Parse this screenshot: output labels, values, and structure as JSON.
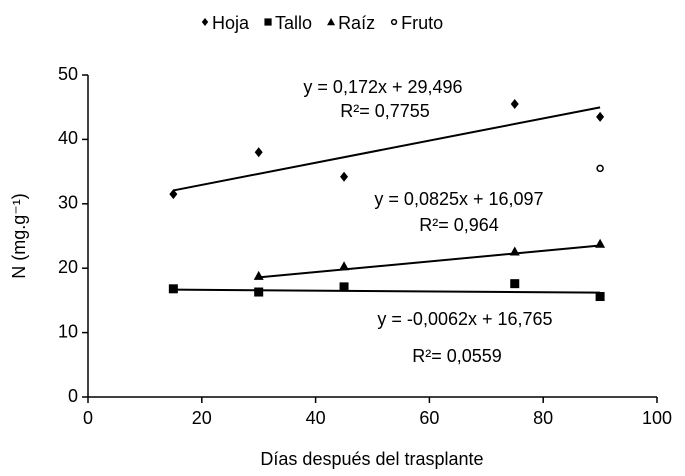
{
  "chart_data": {
    "type": "scatter",
    "x_label": "Días después del trasplante",
    "y_label": "N (mg.g⁻¹)",
    "xlim": [
      0,
      100
    ],
    "xticks": [
      0,
      20,
      40,
      60,
      80,
      100
    ],
    "ylim": [
      0,
      50
    ],
    "yticks": [
      0,
      10,
      20,
      30,
      40,
      50
    ],
    "legend": "top",
    "series": [
      {
        "name": "Hoja",
        "marker": "diamond",
        "color": "#000000",
        "x": [
          15,
          30,
          45,
          75,
          90
        ],
        "values": [
          31.5,
          38.0,
          34.2,
          45.5,
          43.5
        ],
        "trend": {
          "slope": 0.172,
          "intercept": 29.496,
          "equation": "y = 0,172x + 29,496",
          "r2": "R²= 0,7755"
        }
      },
      {
        "name": "Tallo",
        "marker": "square",
        "color": "#000000",
        "x": [
          15,
          30,
          45,
          75,
          90
        ],
        "values": [
          16.8,
          16.3,
          17.1,
          17.6,
          15.6
        ],
        "trend": {
          "slope": -0.0062,
          "intercept": 16.765,
          "equation": "y = -0,0062x + 16,765",
          "r2": "R²= 0,0559"
        }
      },
      {
        "name": "Raíz",
        "marker": "triangle",
        "color": "#000000",
        "x": [
          30,
          45,
          75,
          90
        ],
        "values": [
          18.8,
          20.3,
          22.6,
          23.8
        ],
        "trend": {
          "slope": 0.0825,
          "intercept": 16.097,
          "equation": "y = 0,0825x + 16,097",
          "r2": "R²= 0,964"
        }
      },
      {
        "name": "Fruto",
        "marker": "circle",
        "color": "#000000",
        "x": [
          90
        ],
        "values": [
          35.5
        ]
      }
    ]
  }
}
